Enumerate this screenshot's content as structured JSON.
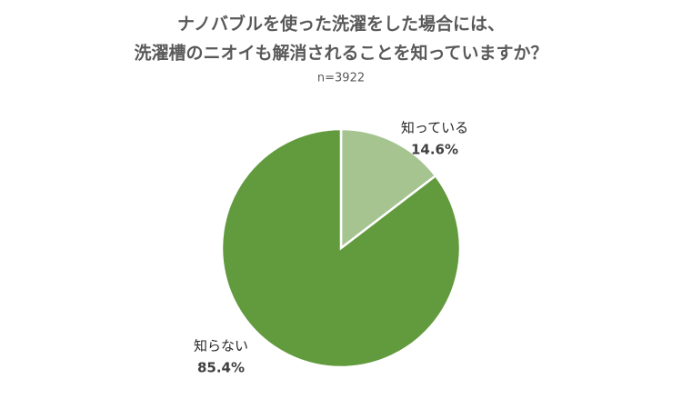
{
  "chart_data": {
    "type": "pie",
    "title": [
      "ナノバブルを使った洗濯をした場合には、",
      "洗濯槽のニオイも解消されることを知っていますか？"
    ],
    "subtitle": "n=3922",
    "categories": [
      "知っている",
      "知らない"
    ],
    "values": [
      14.6,
      85.4
    ],
    "value_labels": [
      "14.6%",
      "85.4%"
    ],
    "colors": [
      "#a5c490",
      "#629a3e"
    ]
  }
}
